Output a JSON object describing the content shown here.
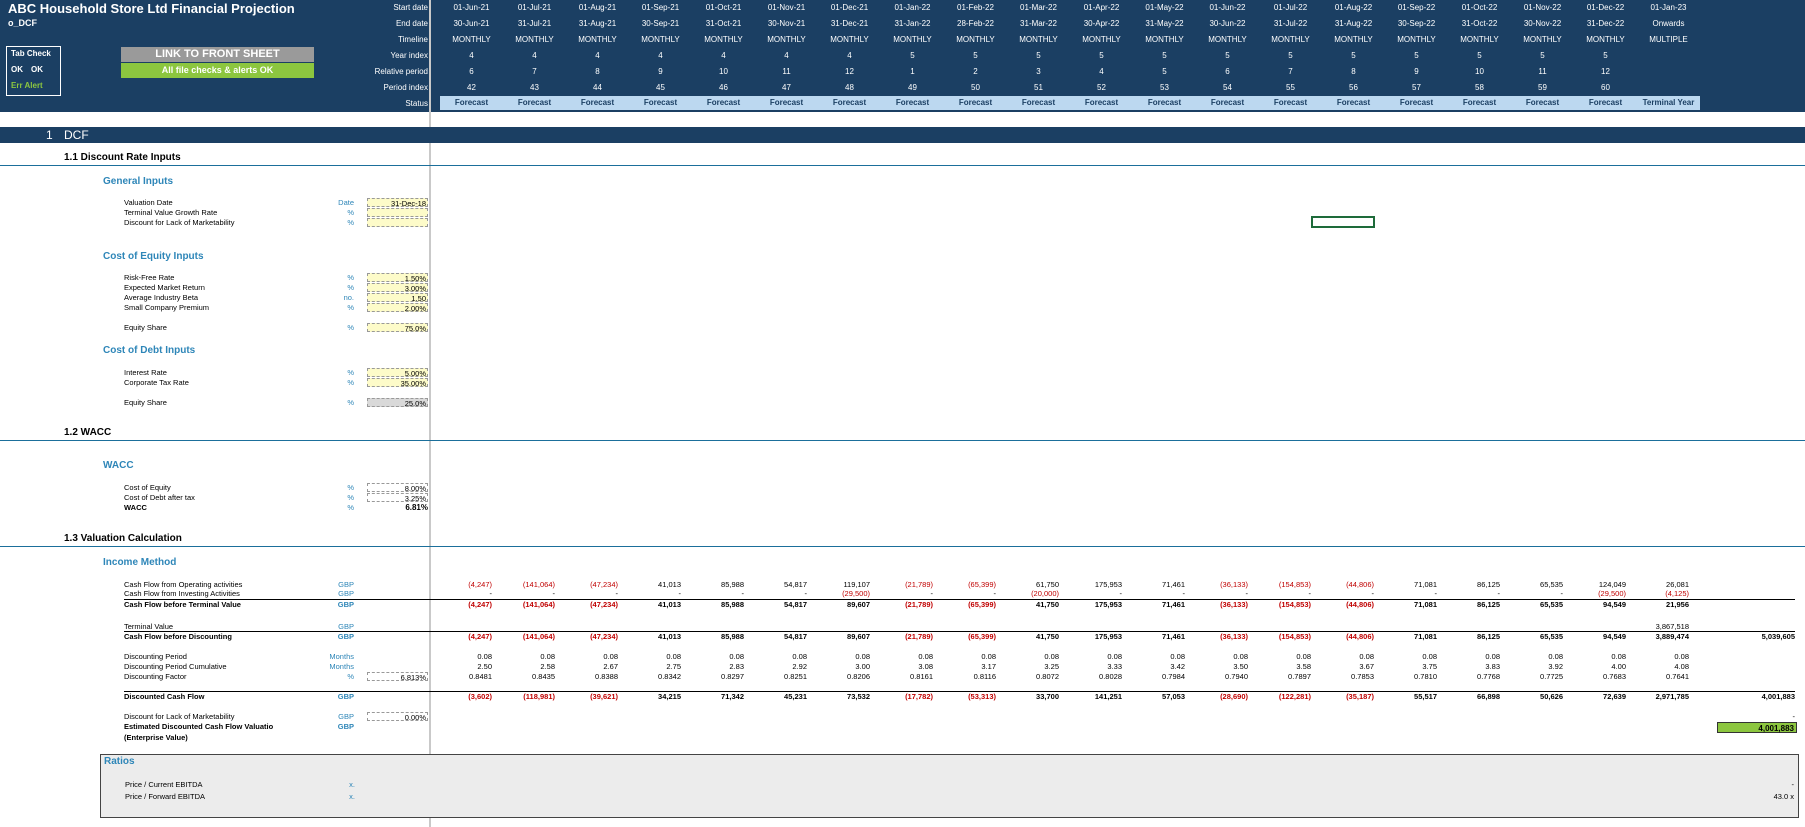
{
  "header": {
    "title": "ABC Household Store Ltd Financial Projection",
    "sheet": "o_DCF",
    "tab_check_label": "Tab Check",
    "tab_check_ok1": "OK",
    "tab_check_ok2": "OK",
    "err_alert_label": "Err  Alert",
    "link_button": "LINK TO FRONT SHEET",
    "checks_ok": "All file checks & alerts OK"
  },
  "timeline_labels": {
    "start": "Start date",
    "end": "End date",
    "timeline": "Timeline",
    "year": "Year index",
    "relative": "Relative period",
    "period": "Period index",
    "status": "Status"
  },
  "columns": [
    {
      "start": "01-Jun-21",
      "end": "30-Jun-21",
      "timeline": "MONTHLY",
      "year": "4",
      "rel": "6",
      "period": "42",
      "status": "Forecast"
    },
    {
      "start": "01-Jul-21",
      "end": "31-Jul-21",
      "timeline": "MONTHLY",
      "year": "4",
      "rel": "7",
      "period": "43",
      "status": "Forecast"
    },
    {
      "start": "01-Aug-21",
      "end": "31-Aug-21",
      "timeline": "MONTHLY",
      "year": "4",
      "rel": "8",
      "period": "44",
      "status": "Forecast"
    },
    {
      "start": "01-Sep-21",
      "end": "30-Sep-21",
      "timeline": "MONTHLY",
      "year": "4",
      "rel": "9",
      "period": "45",
      "status": "Forecast"
    },
    {
      "start": "01-Oct-21",
      "end": "31-Oct-21",
      "timeline": "MONTHLY",
      "year": "4",
      "rel": "10",
      "period": "46",
      "status": "Forecast"
    },
    {
      "start": "01-Nov-21",
      "end": "30-Nov-21",
      "timeline": "MONTHLY",
      "year": "4",
      "rel": "11",
      "period": "47",
      "status": "Forecast"
    },
    {
      "start": "01-Dec-21",
      "end": "31-Dec-21",
      "timeline": "MONTHLY",
      "year": "4",
      "rel": "12",
      "period": "48",
      "status": "Forecast"
    },
    {
      "start": "01-Jan-22",
      "end": "31-Jan-22",
      "timeline": "MONTHLY",
      "year": "5",
      "rel": "1",
      "period": "49",
      "status": "Forecast"
    },
    {
      "start": "01-Feb-22",
      "end": "28-Feb-22",
      "timeline": "MONTHLY",
      "year": "5",
      "rel": "2",
      "period": "50",
      "status": "Forecast"
    },
    {
      "start": "01-Mar-22",
      "end": "31-Mar-22",
      "timeline": "MONTHLY",
      "year": "5",
      "rel": "3",
      "period": "51",
      "status": "Forecast"
    },
    {
      "start": "01-Apr-22",
      "end": "30-Apr-22",
      "timeline": "MONTHLY",
      "year": "5",
      "rel": "4",
      "period": "52",
      "status": "Forecast"
    },
    {
      "start": "01-May-22",
      "end": "31-May-22",
      "timeline": "MONTHLY",
      "year": "5",
      "rel": "5",
      "period": "53",
      "status": "Forecast"
    },
    {
      "start": "01-Jun-22",
      "end": "30-Jun-22",
      "timeline": "MONTHLY",
      "year": "5",
      "rel": "6",
      "period": "54",
      "status": "Forecast"
    },
    {
      "start": "01-Jul-22",
      "end": "31-Jul-22",
      "timeline": "MONTHLY",
      "year": "5",
      "rel": "7",
      "period": "55",
      "status": "Forecast"
    },
    {
      "start": "01-Aug-22",
      "end": "31-Aug-22",
      "timeline": "MONTHLY",
      "year": "5",
      "rel": "8",
      "period": "56",
      "status": "Forecast"
    },
    {
      "start": "01-Sep-22",
      "end": "30-Sep-22",
      "timeline": "MONTHLY",
      "year": "5",
      "rel": "9",
      "period": "57",
      "status": "Forecast"
    },
    {
      "start": "01-Oct-22",
      "end": "31-Oct-22",
      "timeline": "MONTHLY",
      "year": "5",
      "rel": "10",
      "period": "58",
      "status": "Forecast"
    },
    {
      "start": "01-Nov-22",
      "end": "30-Nov-22",
      "timeline": "MONTHLY",
      "year": "5",
      "rel": "11",
      "period": "59",
      "status": "Forecast"
    },
    {
      "start": "01-Dec-22",
      "end": "31-Dec-22",
      "timeline": "MONTHLY",
      "year": "5",
      "rel": "12",
      "period": "60",
      "status": "Forecast"
    },
    {
      "start": "01-Jan-23",
      "end": "Onwards",
      "timeline": "MULTIPLE",
      "year": "",
      "rel": "",
      "period": "",
      "status": "Terminal Year"
    }
  ],
  "section": {
    "num": "1",
    "title": "DCF"
  },
  "subsections": {
    "s11": "1.1    Discount Rate Inputs",
    "s12": "1.2    WACC",
    "s13": "1.3    Valuation Calculation"
  },
  "general": {
    "heading": "General Inputs",
    "valuation_date": "Valuation Date",
    "valuation_date_unit": "Date",
    "valuation_date_val": "31-Dec-18",
    "tv_growth": "Terminal Value Growth Rate",
    "tv_growth_unit": "%",
    "dlom": "Discount for Lack of Marketability",
    "dlom_unit": "%"
  },
  "equity": {
    "heading": "Cost of Equity Inputs",
    "rf": "Risk-Free Rate",
    "rf_unit": "%",
    "rf_val": "1.50%",
    "emr": "Expected Market Return",
    "emr_unit": "%",
    "emr_val": "3.00%",
    "beta": "Average Industry Beta",
    "beta_unit": "no.",
    "beta_val": "1.50",
    "scp": "Small Company Premium",
    "scp_unit": "%",
    "scp_val": "2.00%",
    "share": "Equity Share",
    "share_unit": "%",
    "share_val": "75.0%"
  },
  "debt": {
    "heading": "Cost of Debt Inputs",
    "ir": "Interest Rate",
    "ir_unit": "%",
    "ir_val": "5.00%",
    "tax": "Corporate Tax Rate",
    "tax_unit": "%",
    "tax_val": "35.00%",
    "share": "Equity Share",
    "share_unit": "%",
    "share_val": "25.0%"
  },
  "wacc": {
    "heading": "WACC",
    "coe": "Cost of Equity",
    "coe_unit": "%",
    "coe_val": "8.00%",
    "cod": "Cost of Debt after tax",
    "cod_unit": "%",
    "cod_val": "3.25%",
    "wacc": "WACC",
    "wacc_unit": "%",
    "wacc_val": "6.81%"
  },
  "income": {
    "heading": "Income Method",
    "rows": [
      {
        "label": "Cash Flow from Operating activities",
        "unit": "GBP",
        "bold": false,
        "values": [
          "(4,247)",
          "(141,064)",
          "(47,234)",
          "41,013",
          "85,988",
          "54,817",
          "119,107",
          "(21,789)",
          "(65,399)",
          "61,750",
          "175,953",
          "71,461",
          "(36,133)",
          "(154,853)",
          "(44,806)",
          "71,081",
          "86,125",
          "65,535",
          "124,049",
          "26,081"
        ]
      },
      {
        "label": "Cash Flow from Investing Activities",
        "unit": "GBP",
        "bold": false,
        "values": [
          "-",
          "-",
          "-",
          "-",
          "-",
          "-",
          "(29,500)",
          "-",
          "-",
          "(20,000)",
          "-",
          "-",
          "-",
          "-",
          "-",
          "-",
          "-",
          "-",
          "(29,500)",
          "(4,125)"
        ]
      },
      {
        "label": "Cash Flow before Terminal Value",
        "unit": "GBP",
        "bold": true,
        "values": [
          "(4,247)",
          "(141,064)",
          "(47,234)",
          "41,013",
          "85,988",
          "54,817",
          "89,607",
          "(21,789)",
          "(65,399)",
          "41,750",
          "175,953",
          "71,461",
          "(36,133)",
          "(154,853)",
          "(44,806)",
          "71,081",
          "86,125",
          "65,535",
          "94,549",
          "21,956"
        ]
      },
      {
        "label": "Terminal Value",
        "unit": "GBP",
        "bold": false,
        "values": [
          "",
          "",
          "",
          "",
          "",
          "",
          "",
          "",
          "",
          "",
          "",
          "",
          "",
          "",
          "",
          "",
          "",
          "",
          "",
          "3,867,518"
        ]
      },
      {
        "label": "Cash Flow before Discounting",
        "unit": "GBP",
        "bold": true,
        "values": [
          "(4,247)",
          "(141,064)",
          "(47,234)",
          "41,013",
          "85,988",
          "54,817",
          "89,607",
          "(21,789)",
          "(65,399)",
          "41,750",
          "175,953",
          "71,461",
          "(36,133)",
          "(154,853)",
          "(44,806)",
          "71,081",
          "86,125",
          "65,535",
          "94,549",
          "3,889,474"
        ],
        "total": "5,039,605"
      },
      {
        "label": "Discounting Period",
        "unit": "Months",
        "bold": false,
        "values": [
          "0.08",
          "0.08",
          "0.08",
          "0.08",
          "0.08",
          "0.08",
          "0.08",
          "0.08",
          "0.08",
          "0.08",
          "0.08",
          "0.08",
          "0.08",
          "0.08",
          "0.08",
          "0.08",
          "0.08",
          "0.08",
          "0.08",
          "0.08"
        ]
      },
      {
        "label": "Discounting Period Cumulative",
        "unit": "Months",
        "bold": false,
        "values": [
          "2.50",
          "2.58",
          "2.67",
          "2.75",
          "2.83",
          "2.92",
          "3.00",
          "3.08",
          "3.17",
          "3.25",
          "3.33",
          "3.42",
          "3.50",
          "3.58",
          "3.67",
          "3.75",
          "3.83",
          "3.92",
          "4.00",
          "4.08"
        ]
      },
      {
        "label": "Discounting Factor",
        "unit": "%",
        "bold": false,
        "input": "6.813%",
        "values": [
          "0.8481",
          "0.8435",
          "0.8388",
          "0.8342",
          "0.8297",
          "0.8251",
          "0.8206",
          "0.8161",
          "0.8116",
          "0.8072",
          "0.8028",
          "0.7984",
          "0.7940",
          "0.7897",
          "0.7853",
          "0.7810",
          "0.7768",
          "0.7725",
          "0.7683",
          "0.7641"
        ]
      },
      {
        "label": "Discounted Cash Flow",
        "unit": "GBP",
        "bold": true,
        "values": [
          "(3,602)",
          "(118,981)",
          "(39,621)",
          "34,215",
          "71,342",
          "45,231",
          "73,532",
          "(17,782)",
          "(53,313)",
          "33,700",
          "141,251",
          "57,053",
          "(28,690)",
          "(122,281)",
          "(35,187)",
          "55,517",
          "66,898",
          "50,626",
          "72,639",
          "2,971,785"
        ],
        "total": "4,001,883"
      }
    ],
    "dlom_label": "Discount for Lack of Marketability",
    "dlom_unit": "GBP",
    "dlom_val": "0.00%",
    "dlom_total": "-",
    "est_label": "Estimated Discounted Cash Flow Valuatio",
    "est_label2": "(Enterprise Value)",
    "est_unit": "GBP",
    "est_total": "4,001,883"
  },
  "ratios": {
    "heading": "Ratios",
    "r1": "Price / Current EBITDA",
    "r1_unit": "x.",
    "r1_val": "-",
    "r2": "Price / Forward EBITDA",
    "r2_unit": "x.",
    "r2_val": "43.0 x"
  }
}
